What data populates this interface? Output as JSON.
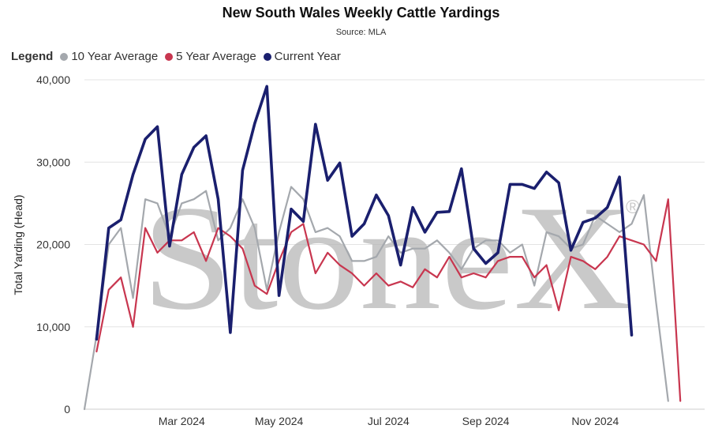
{
  "chart_data": {
    "type": "line",
    "title": "New South Wales Weekly Cattle Yardings",
    "subtitle": "Source: MLA",
    "legend_title": "Legend",
    "legend_position": "top-left",
    "ylabel": "Total Yarding (Head)",
    "ylim": [
      0,
      40000
    ],
    "y_ticks": [
      0,
      10000,
      20000,
      30000,
      40000
    ],
    "y_tick_labels": [
      "0",
      "10,000",
      "20,000",
      "30,000",
      "40,000"
    ],
    "x_ticks": [
      8,
      16,
      25,
      33,
      42
    ],
    "x_tick_labels": [
      "Mar 2024",
      "May 2024",
      "Jul 2024",
      "Sep 2024",
      "Nov 2024"
    ],
    "xlim": [
      0,
      51
    ],
    "grid": "horizontal",
    "watermark": "StoneX",
    "watermark_mark": "®",
    "series": [
      {
        "name": "10 Year Average",
        "color": "#a4a8ad",
        "values": [
          0,
          9000,
          20000,
          22000,
          13500,
          25500,
          25000,
          21000,
          25000,
          25500,
          26500,
          20500,
          22000,
          25500,
          22000,
          14500,
          21500,
          27000,
          25500,
          21500,
          22000,
          21000,
          18000,
          18000,
          18500,
          21000,
          19000,
          19500,
          19500,
          20500,
          19000,
          17000,
          19500,
          20500,
          20500,
          19000,
          20000,
          15000,
          21500,
          21000,
          19500,
          20000,
          23500,
          22500,
          21500,
          22500,
          26000,
          13000,
          1000
        ]
      },
      {
        "name": "5 Year Average",
        "color": "#c8364f",
        "values": [
          null,
          7000,
          14500,
          16000,
          10000,
          22000,
          19000,
          20500,
          20500,
          21500,
          18000,
          22000,
          21000,
          19500,
          15000,
          14000,
          18000,
          21500,
          22500,
          16500,
          19000,
          17500,
          16500,
          15000,
          16500,
          15000,
          15500,
          14800,
          17000,
          16000,
          18500,
          16000,
          16500,
          16000,
          18000,
          18500,
          18500,
          16000,
          17500,
          12000,
          18500,
          18000,
          17000,
          18500,
          21000,
          20500,
          20000,
          18000,
          25500,
          1000
        ]
      },
      {
        "name": "Current Year",
        "color": "#1a1f6e",
        "values": [
          null,
          8500,
          22000,
          23000,
          28500,
          32800,
          34300,
          19800,
          28500,
          31800,
          33200,
          25500,
          9300,
          29000,
          34700,
          39200,
          13800,
          24300,
          22800,
          34600,
          27800,
          29900,
          21000,
          22500,
          26000,
          23500,
          17500,
          24500,
          21500,
          23900,
          24000,
          29200,
          19500,
          17700,
          19000,
          27300,
          27300,
          26800,
          28800,
          27500,
          19300,
          22700,
          23200,
          24500,
          28200,
          9000
        ]
      }
    ]
  }
}
